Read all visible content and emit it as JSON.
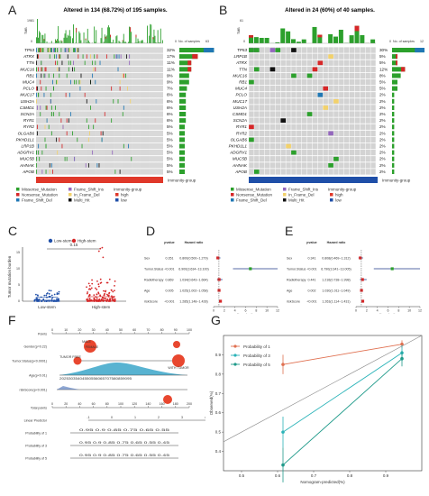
{
  "panels": {
    "A": "A",
    "B": "B",
    "C": "C",
    "D": "D",
    "E": "E",
    "F": "F",
    "G": "G"
  },
  "A": {
    "title": "Altered in 134 (68.72%) of 195 samples.",
    "tmb_max": "1981",
    "tmb_label": "TMB",
    "tmb_zero": "0",
    "nsamples_label": "No. of samples",
    "nsamples_tick0": "0",
    "nsamples_tick1": "63",
    "genes": [
      "TP53",
      "ATRX",
      "TTN",
      "MUC16",
      "RB1",
      "MUC4",
      "PCLO",
      "MUC17",
      "USH2A",
      "CSMD1",
      "SCN2A",
      "RYR1",
      "RYR2",
      "OLGAB6",
      "PKHD1L1",
      "LRP1B",
      "ADGRV1",
      "MUC5B",
      "AHNAK",
      "APOB"
    ],
    "percents": [
      "32%",
      "17%",
      "11%",
      "11%",
      "9%",
      "9%",
      "7%",
      "6%",
      "6%",
      "6%",
      "6%",
      "6%",
      "5%",
      "5%",
      "5%",
      "5%",
      "5%",
      "5%",
      "5%",
      "5%"
    ],
    "group_label": "Immunity-group",
    "legend": [
      "Missense_Mutation",
      "Nonsense_Mutation",
      "Frame_Shift_Del",
      "Frame_Shift_Ins",
      "In_Frame_Del",
      "Multi_Hit"
    ],
    "legend_group": "Immunity-group",
    "legend_high": "high",
    "legend_low": "low"
  },
  "B": {
    "title": "Altered in 24 (60%) of 40 samples.",
    "tmb_max": "61",
    "tmb_label": "TMB",
    "tmb_zero": "0",
    "nsamples_label": "No. of samples",
    "nsamples_tick0": "0",
    "nsamples_tick1": "12",
    "genes": [
      "TP53",
      "LRP1B",
      "ATRX",
      "TTN",
      "MUC16",
      "RB1",
      "MUC4",
      "PCLO",
      "MUC17",
      "USH2A",
      "CSMD1",
      "SCN2A",
      "RYR1",
      "RYR2",
      "OLGAB6",
      "PKHD1L1",
      "ADGRV1",
      "MUC5B",
      "AHNAK",
      "APOB"
    ],
    "percents": [
      "30%",
      "5%",
      "5%",
      "12%",
      "8%",
      "5%",
      "5%",
      "2%",
      "2%",
      "2%",
      "2%",
      "2%",
      "2%",
      "2%",
      "2%",
      "2%",
      "2%",
      "2%",
      "2%",
      "2%"
    ],
    "group_label": "Immunity-group",
    "legend": [
      "Missense_Mutation",
      "Nonsense_Mutation",
      "Frame_Shift_Del",
      "Frame_Shift_Ins",
      "In_Frame_Del",
      "Multi_Hit"
    ],
    "legend_group": "Immunity-group",
    "legend_high": "high",
    "legend_low": "low"
  },
  "C": {
    "legend_low": "Low-stem",
    "legend_high": "High-stem",
    "ylabel": "Tumor mutation burden",
    "xcats": [
      "Low-stem",
      "High-stem"
    ],
    "pvalue": "0.15",
    "yticks": [
      "0",
      "5",
      "10",
      "15"
    ]
  },
  "D": {
    "headers": [
      "pvalue",
      "Hazard ratio"
    ],
    "rows": [
      {
        "name": "Sex",
        "p": "0.351",
        "hr": "0.800(0.500~1.279)"
      },
      {
        "name": "Tumor.Status",
        "p": "<0.001",
        "hr": "6.900(3.634~13.100)"
      },
      {
        "name": "Radiotherapy",
        "p": "0.869",
        "hr": "1.034(0.643~1.664)"
      },
      {
        "name": "Age",
        "p": "0.005",
        "hr": "1.025(1.002~1.058)"
      },
      {
        "name": "riskScore",
        "p": "<0.001",
        "hr": "1.285(1.148~1.428)"
      }
    ],
    "xticks": [
      "0",
      "2",
      "4",
      "6",
      "8",
      "10",
      "12"
    ],
    "xlabel": "Hazard ratio"
  },
  "E": {
    "headers": [
      "pvalue",
      "Hazard ratio"
    ],
    "rows": [
      {
        "name": "Sex",
        "p": "0.341",
        "hr": "0.808(0.469~1.312)"
      },
      {
        "name": "Tumor.Status",
        "p": "<0.001",
        "hr": "6.790(3.341~13.005)"
      },
      {
        "name": "Radiotherapy",
        "p": "0.441",
        "hr": "1.216(0.738~1.998)"
      },
      {
        "name": "Age",
        "p": "0.002",
        "hr": "1.030(1.011~1.049)"
      },
      {
        "name": "riskScore",
        "p": "<0.001",
        "hr": "1.263(1.114~1.431)"
      }
    ],
    "xticks": [
      "0",
      "2",
      "4",
      "6",
      "8",
      "10",
      "12"
    ],
    "xlabel": "Hazard ratio"
  },
  "F": {
    "rows": [
      "Points",
      "Gender(p=0.22)",
      "Tumor.Status(p<0.0001)",
      "Age(p<0.01)",
      "riskScore(p<0.001)",
      "Total points",
      "Linear Predictor",
      "Probability of 1",
      "Probability of 3",
      "Probability of 5"
    ],
    "points_ticks": [
      "0",
      "10",
      "20",
      "30",
      "40",
      "50",
      "60",
      "70",
      "80",
      "90",
      "100"
    ],
    "gender_labels": [
      "MALE",
      "FEMALE"
    ],
    "tumor_labels": [
      "TUMOR FREE",
      "WITH TUMOR"
    ],
    "age_ticks": "20253035404550556065707580859095",
    "total_ticks": [
      "0",
      "20",
      "40",
      "60",
      "80",
      "100",
      "120",
      "140",
      "160",
      "180",
      "200"
    ],
    "lp_ticks": [
      "-1",
      "0",
      "1",
      "2",
      "3",
      "4"
    ],
    "p1_ticks": "0.95 0.9 0.85 0.75 0.65 0.55",
    "p3_ticks": "0.95 0.9 0.85 0.75 0.65 0.55 0.45",
    "p5_ticks": "0.95 0.9 0.85 0.75 0.65 0.55 0.45"
  },
  "G": {
    "legend": [
      "Probability of 1",
      "Probability of 3",
      "Probability of 5"
    ],
    "ylabel": "Observed(%)",
    "xlabel": "Nomogram-predicted(%)",
    "xticks": [
      "0.5",
      "0.6",
      "0.7",
      "0.8",
      "0.9"
    ],
    "yticks": [
      "0.4",
      "0.5",
      "0.6",
      "0.7",
      "0.8",
      "0.9"
    ]
  },
  "colors": {
    "missense": "#2ca02c",
    "nonsense": "#d62728",
    "fs_del": "#1f77b4",
    "fs_ins": "#9467bd",
    "inframe": "#f2d16b",
    "multi": "#111111",
    "high": "#e0382a",
    "low": "#1f4fa8",
    "grid": "#d3d3d3"
  }
}
